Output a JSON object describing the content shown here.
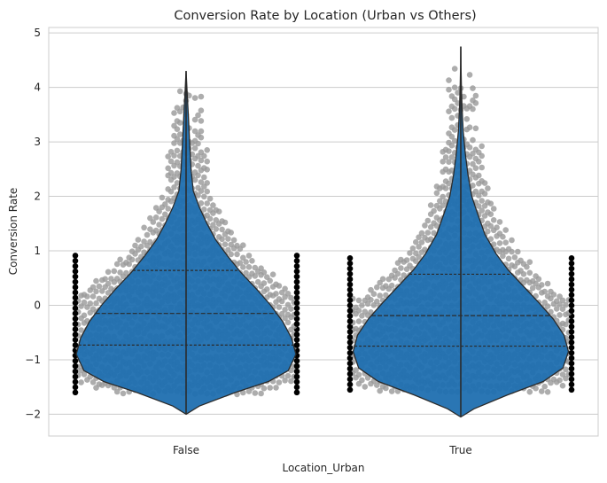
{
  "chart_data": {
    "type": "violin",
    "title": "Conversion Rate by Location (Urban vs Others)",
    "xlabel": "Location_Urban",
    "ylabel": "Conversion Rate",
    "categories": [
      "False",
      "True"
    ],
    "ylim": [
      -2.4,
      5.1
    ],
    "yticks": [
      "−2",
      "−1",
      "0",
      "1",
      "2",
      "3",
      "4",
      "5"
    ],
    "ytick_values": [
      -2,
      -1,
      0,
      1,
      2,
      3,
      4,
      5
    ],
    "grid": true,
    "violins": [
      {
        "category": "False",
        "min": -2.0,
        "max": 4.3,
        "q1": -0.73,
        "median": -0.15,
        "q3": 0.64,
        "swarm_range": [
          -1.6,
          4.0
        ],
        "density_profile": [
          [
            -2.0,
            0.0
          ],
          [
            -1.85,
            0.12
          ],
          [
            -1.6,
            0.45
          ],
          [
            -1.4,
            0.75
          ],
          [
            -1.2,
            0.93
          ],
          [
            -0.9,
            1.0
          ],
          [
            -0.6,
            0.96
          ],
          [
            -0.3,
            0.88
          ],
          [
            0.0,
            0.77
          ],
          [
            0.3,
            0.64
          ],
          [
            0.6,
            0.5
          ],
          [
            0.9,
            0.38
          ],
          [
            1.2,
            0.27
          ],
          [
            1.5,
            0.19
          ],
          [
            1.8,
            0.12
          ],
          [
            2.1,
            0.065
          ],
          [
            2.5,
            0.045
          ],
          [
            3.0,
            0.032
          ],
          [
            3.5,
            0.02
          ],
          [
            3.8,
            0.012
          ],
          [
            4.1,
            0.005
          ],
          [
            4.3,
            0.0
          ]
        ]
      },
      {
        "category": "True",
        "min": -2.05,
        "max": 4.75,
        "q1": -0.75,
        "median": -0.19,
        "q3": 0.57,
        "swarm_range": [
          -1.55,
          4.4
        ],
        "density_profile": [
          [
            -2.05,
            0.0
          ],
          [
            -1.9,
            0.12
          ],
          [
            -1.65,
            0.42
          ],
          [
            -1.4,
            0.75
          ],
          [
            -1.15,
            0.93
          ],
          [
            -0.85,
            0.98
          ],
          [
            -0.55,
            0.94
          ],
          [
            -0.25,
            0.84
          ],
          [
            0.05,
            0.71
          ],
          [
            0.35,
            0.57
          ],
          [
            0.65,
            0.43
          ],
          [
            0.95,
            0.32
          ],
          [
            1.3,
            0.22
          ],
          [
            1.7,
            0.15
          ],
          [
            2.0,
            0.1
          ],
          [
            2.4,
            0.065
          ],
          [
            2.8,
            0.04
          ],
          [
            3.2,
            0.022
          ],
          [
            3.6,
            0.012
          ],
          [
            4.0,
            0.006
          ],
          [
            4.4,
            0.002
          ],
          [
            4.75,
            0.0
          ]
        ]
      }
    ],
    "colors": {
      "violin_fill": "#1f6fb0",
      "violin_edge": "#2b2b2b",
      "swarm_point": "#999999",
      "swarm_edge_point": "#000000",
      "background": "#ffffff",
      "grid": "#cccccc"
    }
  }
}
